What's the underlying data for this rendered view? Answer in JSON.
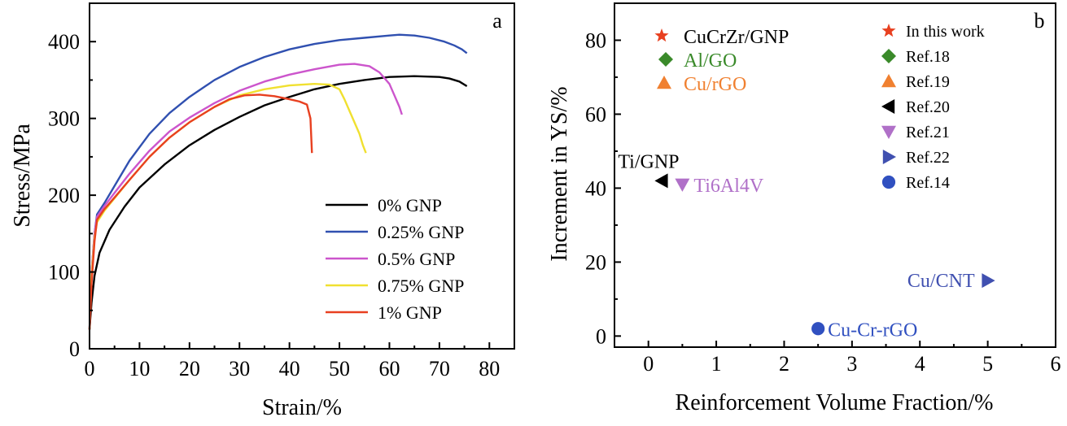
{
  "chart_data": [
    {
      "type": "line",
      "panel_label": "a",
      "xlabel": "Strain/%",
      "ylabel": "Stress/MPa",
      "xlim": [
        0,
        85
      ],
      "ylim": [
        0,
        450
      ],
      "xticks": [
        "0",
        "10",
        "20",
        "30",
        "40",
        "50",
        "60",
        "70",
        "80"
      ],
      "yticks": [
        "0",
        "100",
        "200",
        "300",
        "400"
      ],
      "legend_position": "bottom-right",
      "series": [
        {
          "name": "0% GNP",
          "color": "#000000",
          "x": [
            0,
            0.4,
            1,
            2,
            4,
            7,
            10,
            15,
            20,
            25,
            30,
            35,
            40,
            45,
            50,
            55,
            60,
            65,
            70,
            72,
            74,
            75.5
          ],
          "y": [
            25,
            60,
            95,
            125,
            155,
            185,
            210,
            240,
            265,
            285,
            302,
            317,
            328,
            338,
            345,
            350,
            354,
            355,
            354,
            352,
            348,
            342
          ]
        },
        {
          "name": "0.25% GNP",
          "color": "#3050b0",
          "x": [
            0,
            0.4,
            1,
            1.5,
            3,
            5,
            8,
            12,
            16,
            20,
            25,
            30,
            35,
            40,
            45,
            50,
            55,
            60,
            62,
            65,
            68,
            71,
            73,
            74.5,
            75.5
          ],
          "y": [
            25,
            100,
            150,
            175,
            190,
            212,
            245,
            280,
            307,
            328,
            350,
            367,
            380,
            390,
            397,
            402,
            405,
            408,
            409,
            408,
            405,
            400,
            395,
            390,
            385
          ]
        },
        {
          "name": "0.5% GNP",
          "color": "#cc55cc",
          "x": [
            0,
            0.4,
            1,
            1.5,
            3,
            5,
            8,
            12,
            16,
            20,
            25,
            30,
            35,
            40,
            45,
            50,
            53,
            56,
            58,
            60,
            61,
            62,
            62.5
          ],
          "y": [
            25,
            100,
            150,
            172,
            186,
            203,
            228,
            258,
            283,
            301,
            320,
            336,
            348,
            357,
            364,
            370,
            371,
            368,
            360,
            345,
            330,
            315,
            305
          ]
        },
        {
          "name": "0.75% GNP",
          "color": "#f0e030",
          "x": [
            0,
            0.4,
            1,
            1.5,
            3,
            5,
            8,
            12,
            16,
            20,
            25,
            30,
            35,
            40,
            45,
            48,
            50,
            51,
            52,
            53,
            54,
            54.7,
            55.3
          ],
          "y": [
            25,
            95,
            145,
            165,
            180,
            196,
            220,
            250,
            275,
            295,
            315,
            330,
            338,
            343,
            345,
            344,
            338,
            325,
            310,
            295,
            280,
            265,
            255
          ]
        },
        {
          "name": "1% GNP",
          "color": "#e84020",
          "x": [
            0,
            0.4,
            1,
            1.5,
            3,
            5,
            8,
            12,
            16,
            20,
            25,
            28,
            31,
            34,
            37,
            40,
            42,
            43.5,
            44.2,
            44.4,
            44.5
          ],
          "y": [
            25,
            85,
            140,
            168,
            182,
            197,
            220,
            250,
            275,
            295,
            315,
            325,
            330,
            331,
            329,
            325,
            322,
            318,
            300,
            270,
            255
          ]
        }
      ]
    },
    {
      "type": "scatter",
      "panel_label": "b",
      "xlabel": "Reinforcement Volume Fraction/%",
      "ylabel": "Increment in YS/%",
      "xlim": [
        -0.5,
        6
      ],
      "ylim": [
        -3,
        90
      ],
      "xticks": [
        "0",
        "1",
        "2",
        "3",
        "4",
        "5",
        "6"
      ],
      "yticks": [
        "0",
        "20",
        "40",
        "60",
        "80"
      ],
      "legend_position": "top-right",
      "series": [
        {
          "name": "In this work",
          "marker": "star",
          "color": "#e84020",
          "label": "CuCrZr/GNP",
          "points": []
        },
        {
          "name": "Ref.18",
          "marker": "diamond",
          "color": "#3a8a2a",
          "label": "Al/GO",
          "points": []
        },
        {
          "name": "Ref.19",
          "marker": "triangle-up",
          "color": "#f08030",
          "label": "Cu/rGO",
          "points": []
        },
        {
          "name": "Ref.20",
          "marker": "triangle-left",
          "color": "#000000",
          "label": "Ti/GNP",
          "points": [
            [
              0.2,
              42
            ]
          ]
        },
        {
          "name": "Ref.21",
          "marker": "triangle-down",
          "color": "#b070c8",
          "label": "Ti6Al4V",
          "points": [
            [
              0.5,
              41
            ]
          ]
        },
        {
          "name": "Ref.22",
          "marker": "triangle-right",
          "color": "#4050b0",
          "label": "Cu/CNT",
          "points": [
            [
              5,
              15
            ]
          ]
        },
        {
          "name": "Ref.14",
          "marker": "circle",
          "color": "#3050c0",
          "label": "Cu-Cr-rGO",
          "points": [
            [
              2.5,
              2
            ]
          ]
        }
      ]
    }
  ]
}
